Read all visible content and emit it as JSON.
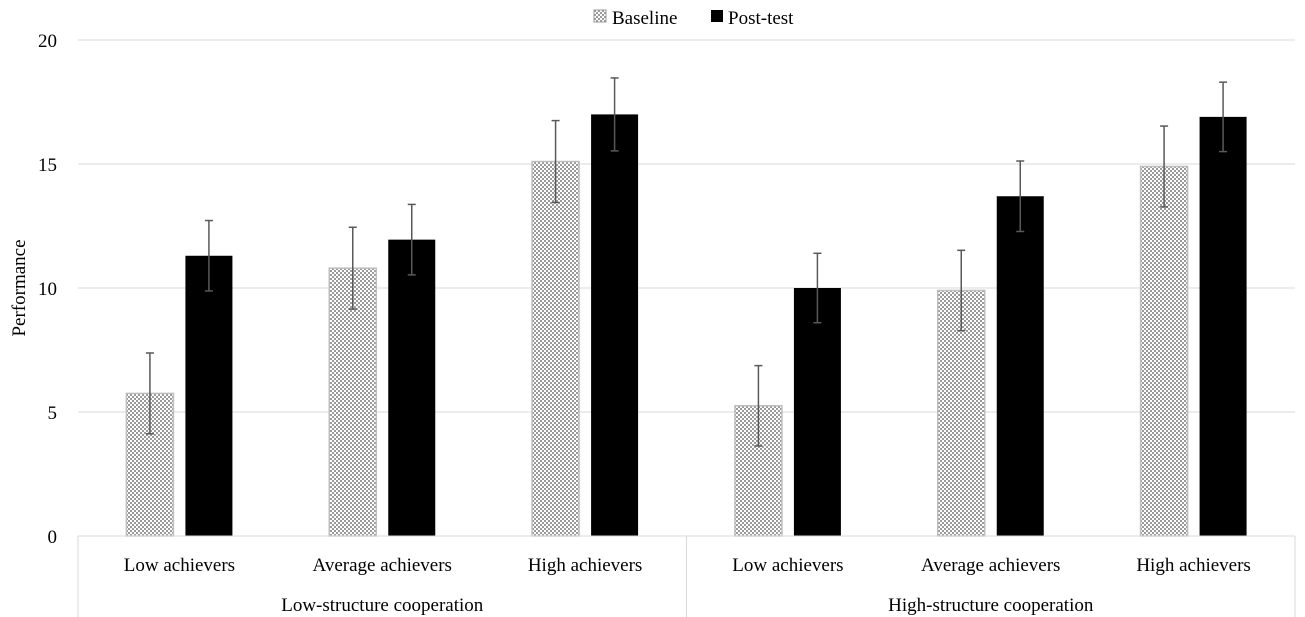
{
  "chart_data": {
    "type": "bar",
    "ylabel": "Performance",
    "ylim": [
      0,
      20
    ],
    "yticks": [
      0,
      5,
      10,
      15,
      20
    ],
    "grid": true,
    "legend_position": "top",
    "groups": [
      {
        "label": "Low-structure cooperation",
        "categories": [
          "Low achievers",
          "Average achievers",
          "High achievers"
        ]
      },
      {
        "label": "High-structure cooperation",
        "categories": [
          "Low achievers",
          "Average achievers",
          "High achievers"
        ]
      }
    ],
    "series": [
      {
        "name": "Baseline",
        "pattern": "checkered-gray",
        "values": [
          5.75,
          10.8,
          15.1,
          5.25,
          9.9,
          14.9
        ],
        "errors": [
          1.63,
          1.65,
          1.65,
          1.62,
          1.62,
          1.63
        ]
      },
      {
        "name": "Post-test",
        "color": "#000000",
        "values": [
          11.3,
          11.95,
          17.0,
          10.0,
          13.7,
          16.9
        ],
        "errors": [
          1.42,
          1.42,
          1.47,
          1.4,
          1.42,
          1.4
        ]
      }
    ]
  }
}
